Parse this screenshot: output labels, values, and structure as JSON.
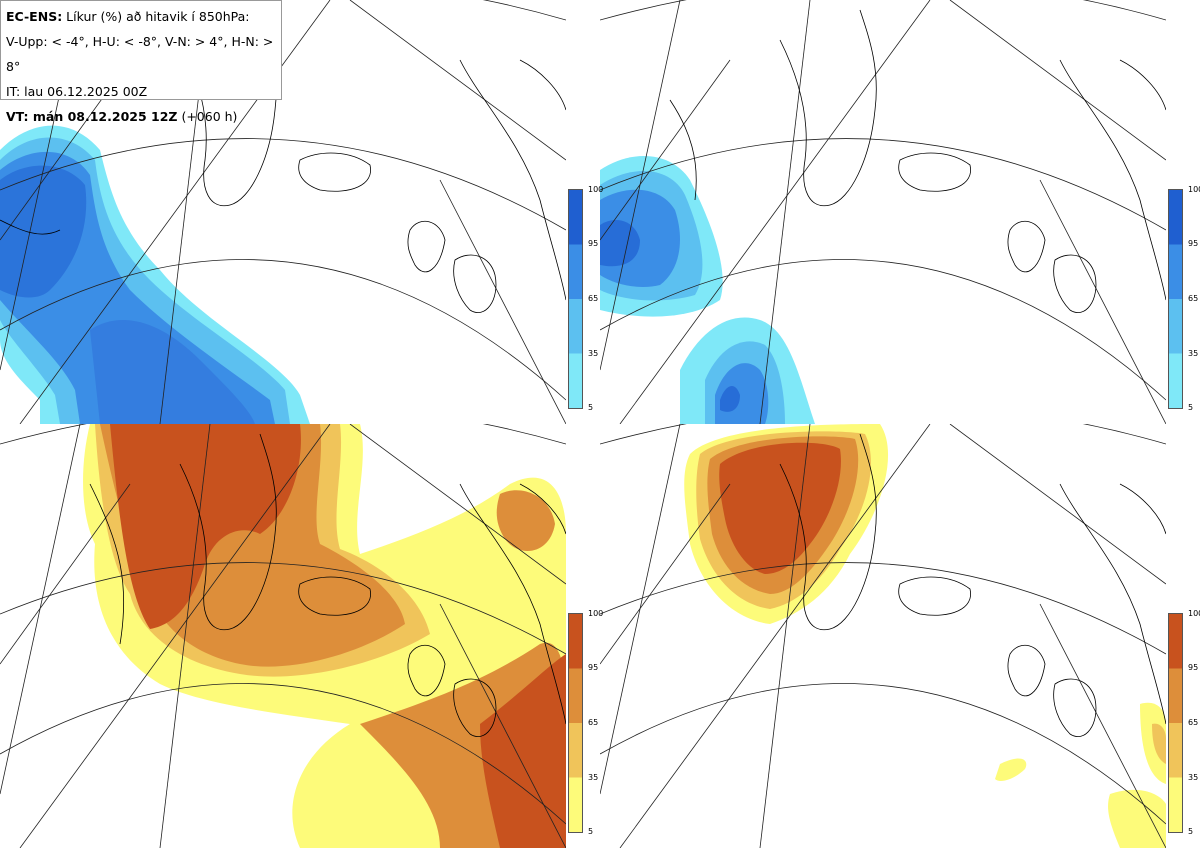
{
  "info": {
    "title_bold": "EC-ENS:",
    "title_rest": " Líkur (%) að hitavik í 850hPa:",
    "line2": "V-Upp: < -4°, H-U: < -8°, V-N: > 4°, H-N: > 8°",
    "line3": "IT: lau 06.12.2025 00Z",
    "line4_bold": "VT: mán 08.12.2025 12Z",
    "line4_rest": " (+060 h)"
  },
  "colorbar_cold": {
    "labels": [
      "100",
      "95",
      "65",
      "35",
      "5"
    ],
    "colors": [
      "#1f5fd0",
      "#3b8ee6",
      "#5cc0f0",
      "#7fe8f8"
    ]
  },
  "colorbar_warm": {
    "labels": [
      "100",
      "95",
      "65",
      "35",
      "5"
    ],
    "colors": [
      "#c8521e",
      "#dd8e3a",
      "#f0c45a",
      "#fdfb7a"
    ]
  },
  "panels": [
    {
      "id": "top-left",
      "variable": "V-Upp",
      "colorbar": "cold"
    },
    {
      "id": "top-right",
      "variable": "H-U",
      "colorbar": "cold"
    },
    {
      "id": "bottom-left",
      "variable": "V-N",
      "colorbar": "warm"
    },
    {
      "id": "bottom-right",
      "variable": "H-N",
      "colorbar": "warm"
    }
  ]
}
